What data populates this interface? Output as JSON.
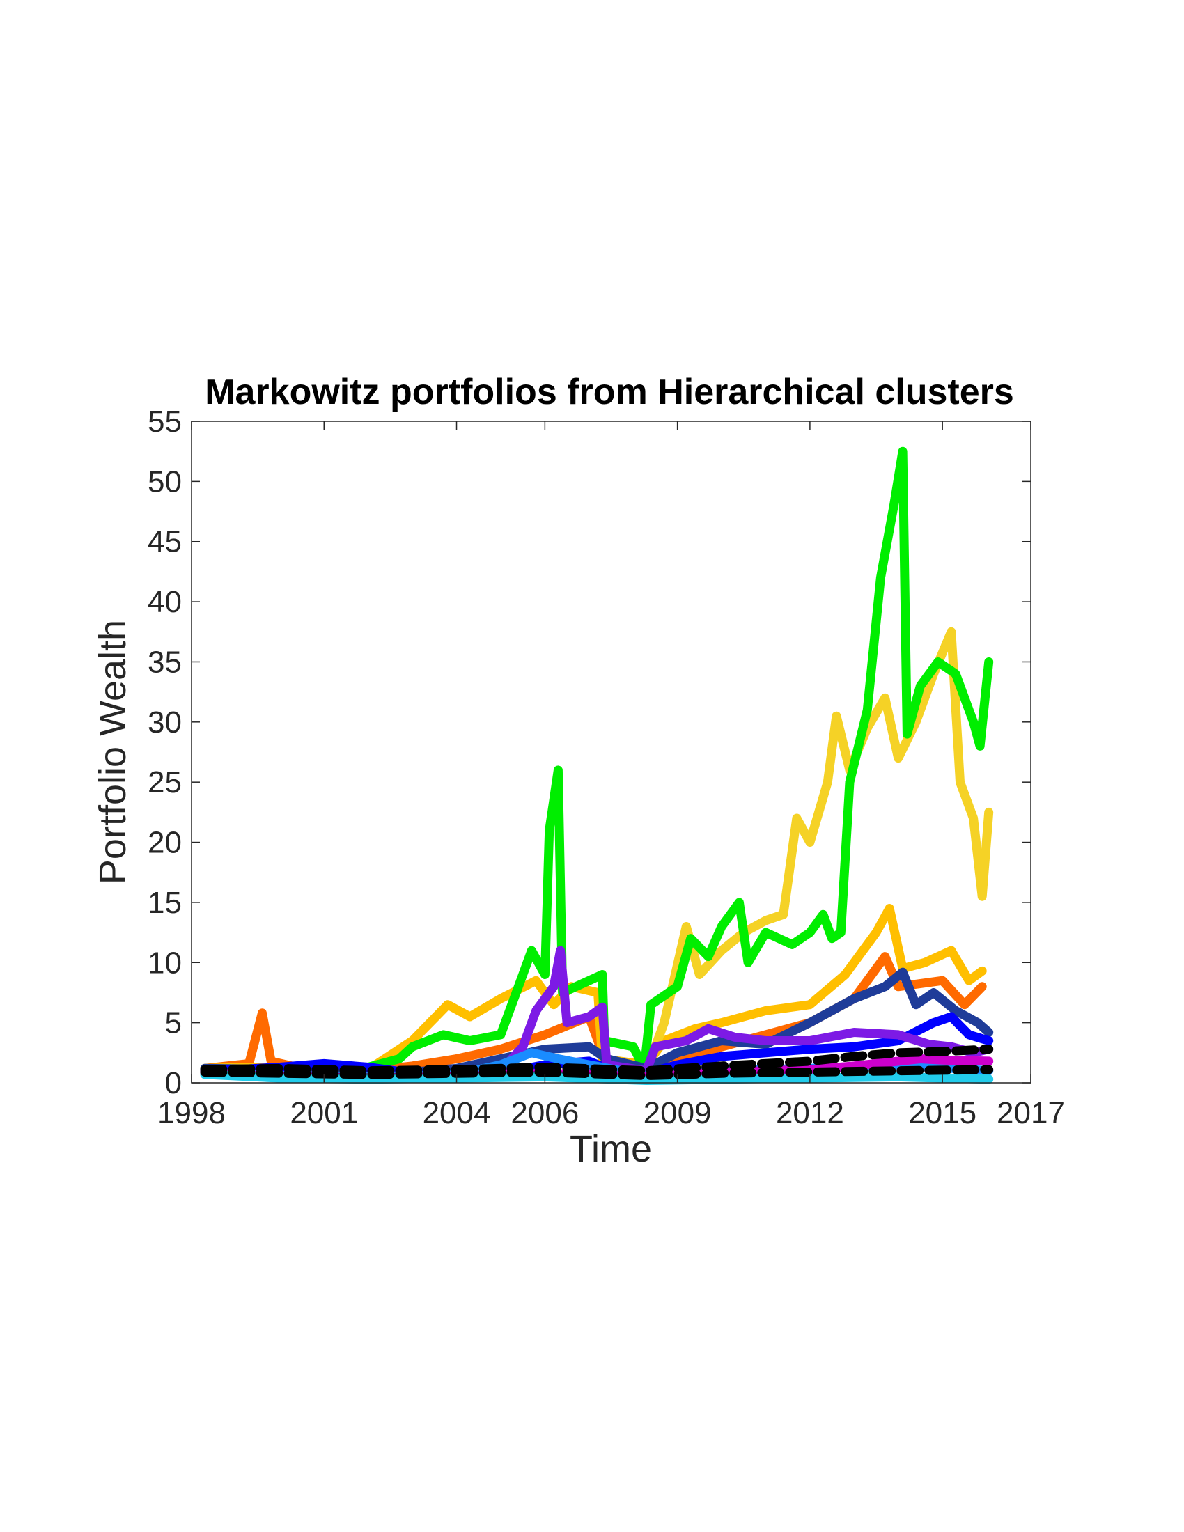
{
  "chart_data": {
    "type": "line",
    "title": "Markowitz portfolios from Hierarchical clusters",
    "xlabel": "Time",
    "ylabel": "Portfolio Wealth",
    "xlim": [
      1998,
      2017
    ],
    "ylim": [
      0,
      55
    ],
    "xticks": [
      "1998",
      "2001",
      "2004",
      "2006",
      "2009",
      "2012",
      "2015",
      "2017"
    ],
    "yticks": [
      "0",
      "5",
      "10",
      "15",
      "20",
      "25",
      "30",
      "35",
      "40",
      "45",
      "50",
      "55"
    ],
    "grid": false,
    "legend": "none",
    "series": [
      {
        "color": "#ff6a00",
        "style": "solid",
        "points": [
          [
            1998.3,
            1.2
          ],
          [
            1999.3,
            1.6
          ],
          [
            1999.6,
            5.8
          ],
          [
            1999.8,
            1.8
          ],
          [
            2000.5,
            1.2
          ],
          [
            2002,
            1.0
          ],
          [
            2003,
            1.4
          ],
          [
            2004,
            2.0
          ],
          [
            2005,
            2.8
          ],
          [
            2006,
            4.0
          ],
          [
            2007,
            5.5
          ],
          [
            2007.4,
            1.5
          ],
          [
            2008.3,
            1.2
          ],
          [
            2009,
            2.0
          ],
          [
            2010,
            3.0
          ],
          [
            2011,
            4.0
          ],
          [
            2012,
            5.0
          ],
          [
            2013,
            7.0
          ],
          [
            2013.7,
            10.5
          ],
          [
            2014,
            8.0
          ],
          [
            2015,
            8.5
          ],
          [
            2015.5,
            6.5
          ],
          [
            2015.9,
            8.0
          ]
        ]
      },
      {
        "color": "#ffbf00",
        "style": "solid",
        "points": [
          [
            1998.3,
            1.2
          ],
          [
            1999.5,
            1.3
          ],
          [
            2001,
            1.2
          ],
          [
            2002,
            1.1
          ],
          [
            2003,
            3.5
          ],
          [
            2003.8,
            6.5
          ],
          [
            2004.3,
            5.5
          ],
          [
            2005,
            7.0
          ],
          [
            2005.8,
            8.5
          ],
          [
            2006.2,
            6.5
          ],
          [
            2006.6,
            8.0
          ],
          [
            2007.2,
            7.5
          ],
          [
            2007.3,
            2.0
          ],
          [
            2008.3,
            1.5
          ],
          [
            2008.7,
            3.5
          ],
          [
            2009.4,
            4.5
          ],
          [
            2010,
            5.0
          ],
          [
            2011,
            6.0
          ],
          [
            2012,
            6.5
          ],
          [
            2012.8,
            9.0
          ],
          [
            2013.5,
            12.5
          ],
          [
            2013.8,
            14.5
          ],
          [
            2014.1,
            9.5
          ],
          [
            2014.6,
            10.0
          ],
          [
            2015.2,
            11.0
          ],
          [
            2015.6,
            8.5
          ],
          [
            2015.9,
            9.3
          ]
        ]
      },
      {
        "color": "#f5d226",
        "style": "solid",
        "points": [
          [
            2008.3,
            1.0
          ],
          [
            2008.7,
            5.0
          ],
          [
            2009.2,
            13.0
          ],
          [
            2009.5,
            9.0
          ],
          [
            2010,
            11.0
          ],
          [
            2010.5,
            12.5
          ],
          [
            2011,
            13.5
          ],
          [
            2011.4,
            14.0
          ],
          [
            2011.7,
            22.0
          ],
          [
            2012,
            20.0
          ],
          [
            2012.4,
            25.0
          ],
          [
            2012.6,
            30.5
          ],
          [
            2012.9,
            26.0
          ],
          [
            2013.3,
            29.5
          ],
          [
            2013.7,
            32.0
          ],
          [
            2014,
            27.0
          ],
          [
            2014.4,
            30.0
          ],
          [
            2014.8,
            34.0
          ],
          [
            2015.2,
            37.5
          ],
          [
            2015.4,
            25.0
          ],
          [
            2015.7,
            22.0
          ],
          [
            2015.9,
            15.5
          ],
          [
            2016.05,
            22.5
          ]
        ]
      },
      {
        "color": "#00ee00",
        "style": "solid",
        "points": [
          [
            2000.8,
            1.0
          ],
          [
            2002,
            1.3
          ],
          [
            2002.7,
            2.0
          ],
          [
            2003,
            3.0
          ],
          [
            2003.7,
            4.0
          ],
          [
            2004.3,
            3.5
          ],
          [
            2005,
            4.0
          ],
          [
            2005.5,
            9.0
          ],
          [
            2005.7,
            11.0
          ],
          [
            2006,
            9.0
          ],
          [
            2006.1,
            21.0
          ],
          [
            2006.3,
            26.0
          ],
          [
            2006.4,
            7.5
          ],
          [
            2007,
            8.5
          ],
          [
            2007.3,
            9.0
          ],
          [
            2007.35,
            3.5
          ],
          [
            2008,
            3.0
          ],
          [
            2008.25,
            1.2
          ],
          [
            2008.4,
            6.5
          ],
          [
            2009,
            8.0
          ],
          [
            2009.3,
            12.0
          ],
          [
            2009.7,
            10.5
          ],
          [
            2010,
            13.0
          ],
          [
            2010.4,
            15.0
          ],
          [
            2010.6,
            10.0
          ],
          [
            2011,
            12.5
          ],
          [
            2011.6,
            11.5
          ],
          [
            2012,
            12.5
          ],
          [
            2012.3,
            14.0
          ],
          [
            2012.5,
            12.0
          ],
          [
            2012.7,
            12.5
          ],
          [
            2012.9,
            25.0
          ],
          [
            2013.3,
            31.0
          ],
          [
            2013.6,
            42.0
          ],
          [
            2013.9,
            48.0
          ],
          [
            2014.1,
            52.5
          ],
          [
            2014.2,
            29.0
          ],
          [
            2014.5,
            33.0
          ],
          [
            2014.9,
            35.0
          ],
          [
            2015.3,
            34.0
          ],
          [
            2015.7,
            30.0
          ],
          [
            2015.85,
            28.0
          ],
          [
            2016.05,
            35.0
          ]
        ]
      },
      {
        "color": "#1f3c99",
        "style": "solid",
        "points": [
          [
            1998.3,
            1.2
          ],
          [
            2000,
            1.1
          ],
          [
            2001,
            1.0
          ],
          [
            2002,
            0.9
          ],
          [
            2003,
            0.9
          ],
          [
            2004,
            1.2
          ],
          [
            2005,
            2.0
          ],
          [
            2006,
            2.8
          ],
          [
            2007,
            3.0
          ],
          [
            2007.4,
            2.0
          ],
          [
            2008.3,
            1.2
          ],
          [
            2009,
            2.5
          ],
          [
            2010,
            3.5
          ],
          [
            2011,
            3.2
          ],
          [
            2012,
            5.0
          ],
          [
            2013,
            7.0
          ],
          [
            2013.7,
            8.0
          ],
          [
            2014.1,
            9.2
          ],
          [
            2014.4,
            6.5
          ],
          [
            2014.8,
            7.5
          ],
          [
            2015.3,
            6.0
          ],
          [
            2015.8,
            5.0
          ],
          [
            2016.05,
            4.2
          ]
        ]
      },
      {
        "color": "#0000ff",
        "style": "solid",
        "points": [
          [
            1998.3,
            1.0
          ],
          [
            1999,
            1.1
          ],
          [
            2000,
            1.3
          ],
          [
            2001,
            1.6
          ],
          [
            2002,
            1.3
          ],
          [
            2003,
            0.8
          ],
          [
            2004,
            0.6
          ],
          [
            2005,
            0.8
          ],
          [
            2006,
            1.5
          ],
          [
            2007,
            1.8
          ],
          [
            2007.4,
            1.2
          ],
          [
            2008.3,
            0.8
          ],
          [
            2009,
            1.5
          ],
          [
            2010,
            2.2
          ],
          [
            2011,
            2.5
          ],
          [
            2012,
            2.8
          ],
          [
            2013,
            3.0
          ],
          [
            2014,
            3.5
          ],
          [
            2014.8,
            5.0
          ],
          [
            2015.2,
            5.5
          ],
          [
            2015.6,
            4.0
          ],
          [
            2016.05,
            3.5
          ]
        ]
      },
      {
        "color": "#7d1ae5",
        "style": "solid",
        "points": [
          [
            1998.3,
            1.0
          ],
          [
            1999,
            0.7
          ],
          [
            2000,
            0.5
          ],
          [
            2001,
            0.6
          ],
          [
            2002,
            0.4
          ],
          [
            2003,
            0.4
          ],
          [
            2004,
            0.5
          ],
          [
            2005,
            1.0
          ],
          [
            2005.5,
            3.0
          ],
          [
            2005.8,
            6.0
          ],
          [
            2006.2,
            8.0
          ],
          [
            2006.35,
            11.0
          ],
          [
            2006.5,
            5.0
          ],
          [
            2007,
            5.5
          ],
          [
            2007.3,
            6.3
          ],
          [
            2007.4,
            1.5
          ],
          [
            2008.3,
            1.0
          ],
          [
            2008.5,
            3.0
          ],
          [
            2009.2,
            3.5
          ],
          [
            2009.7,
            4.5
          ],
          [
            2010.3,
            3.8
          ],
          [
            2011,
            3.5
          ],
          [
            2012,
            3.5
          ],
          [
            2013,
            4.2
          ],
          [
            2014,
            4.0
          ],
          [
            2014.7,
            3.2
          ],
          [
            2015.2,
            3.0
          ],
          [
            2015.7,
            2.5
          ],
          [
            2016.05,
            2.8
          ]
        ]
      },
      {
        "color": "#1a8cff",
        "style": "solid",
        "points": [
          [
            1998.3,
            0.8
          ],
          [
            2000,
            0.6
          ],
          [
            2002,
            0.5
          ],
          [
            2004,
            0.7
          ],
          [
            2005,
            1.5
          ],
          [
            2005.7,
            2.5
          ],
          [
            2006.3,
            2.0
          ],
          [
            2007,
            1.5
          ],
          [
            2008.3,
            0.6
          ],
          [
            2010,
            1.0
          ],
          [
            2012,
            1.2
          ],
          [
            2014,
            1.5
          ],
          [
            2016.05,
            1.0
          ]
        ]
      },
      {
        "color": "#cc00cc",
        "style": "solid",
        "points": [
          [
            1998.3,
            0.8
          ],
          [
            2000,
            0.5
          ],
          [
            2002,
            0.4
          ],
          [
            2004,
            0.5
          ],
          [
            2006,
            0.8
          ],
          [
            2008.3,
            0.5
          ],
          [
            2010,
            0.9
          ],
          [
            2012,
            1.1
          ],
          [
            2013,
            1.4
          ],
          [
            2014,
            1.8
          ],
          [
            2014.5,
            2.0
          ],
          [
            2015,
            1.9
          ],
          [
            2016.05,
            1.8
          ]
        ]
      },
      {
        "color": "#22cceb",
        "style": "solid",
        "points": [
          [
            1998.3,
            0.7
          ],
          [
            2000,
            0.4
          ],
          [
            2002,
            0.3
          ],
          [
            2004,
            0.4
          ],
          [
            2006,
            0.5
          ],
          [
            2008.3,
            0.2
          ],
          [
            2010,
            0.3
          ],
          [
            2012,
            0.4
          ],
          [
            2014,
            0.5
          ],
          [
            2016.05,
            0.3
          ]
        ]
      },
      {
        "color": "#000000",
        "style": "dashed",
        "points": [
          [
            1998.3,
            1.1
          ],
          [
            2000,
            1.2
          ],
          [
            2002,
            1.0
          ],
          [
            2004,
            1.1
          ],
          [
            2006,
            1.3
          ],
          [
            2008.3,
            1.0
          ],
          [
            2010,
            1.4
          ],
          [
            2012,
            1.8
          ],
          [
            2013,
            2.2
          ],
          [
            2014,
            2.5
          ],
          [
            2015,
            2.6
          ],
          [
            2016.05,
            2.8
          ]
        ]
      },
      {
        "color": "#000000",
        "style": "dashed",
        "points": [
          [
            1998.3,
            0.9
          ],
          [
            2000,
            0.8
          ],
          [
            2002,
            0.7
          ],
          [
            2004,
            0.8
          ],
          [
            2006,
            0.9
          ],
          [
            2008.3,
            0.6
          ],
          [
            2010,
            0.8
          ],
          [
            2012,
            0.9
          ],
          [
            2014,
            1.0
          ],
          [
            2016.05,
            1.1
          ]
        ]
      }
    ]
  }
}
